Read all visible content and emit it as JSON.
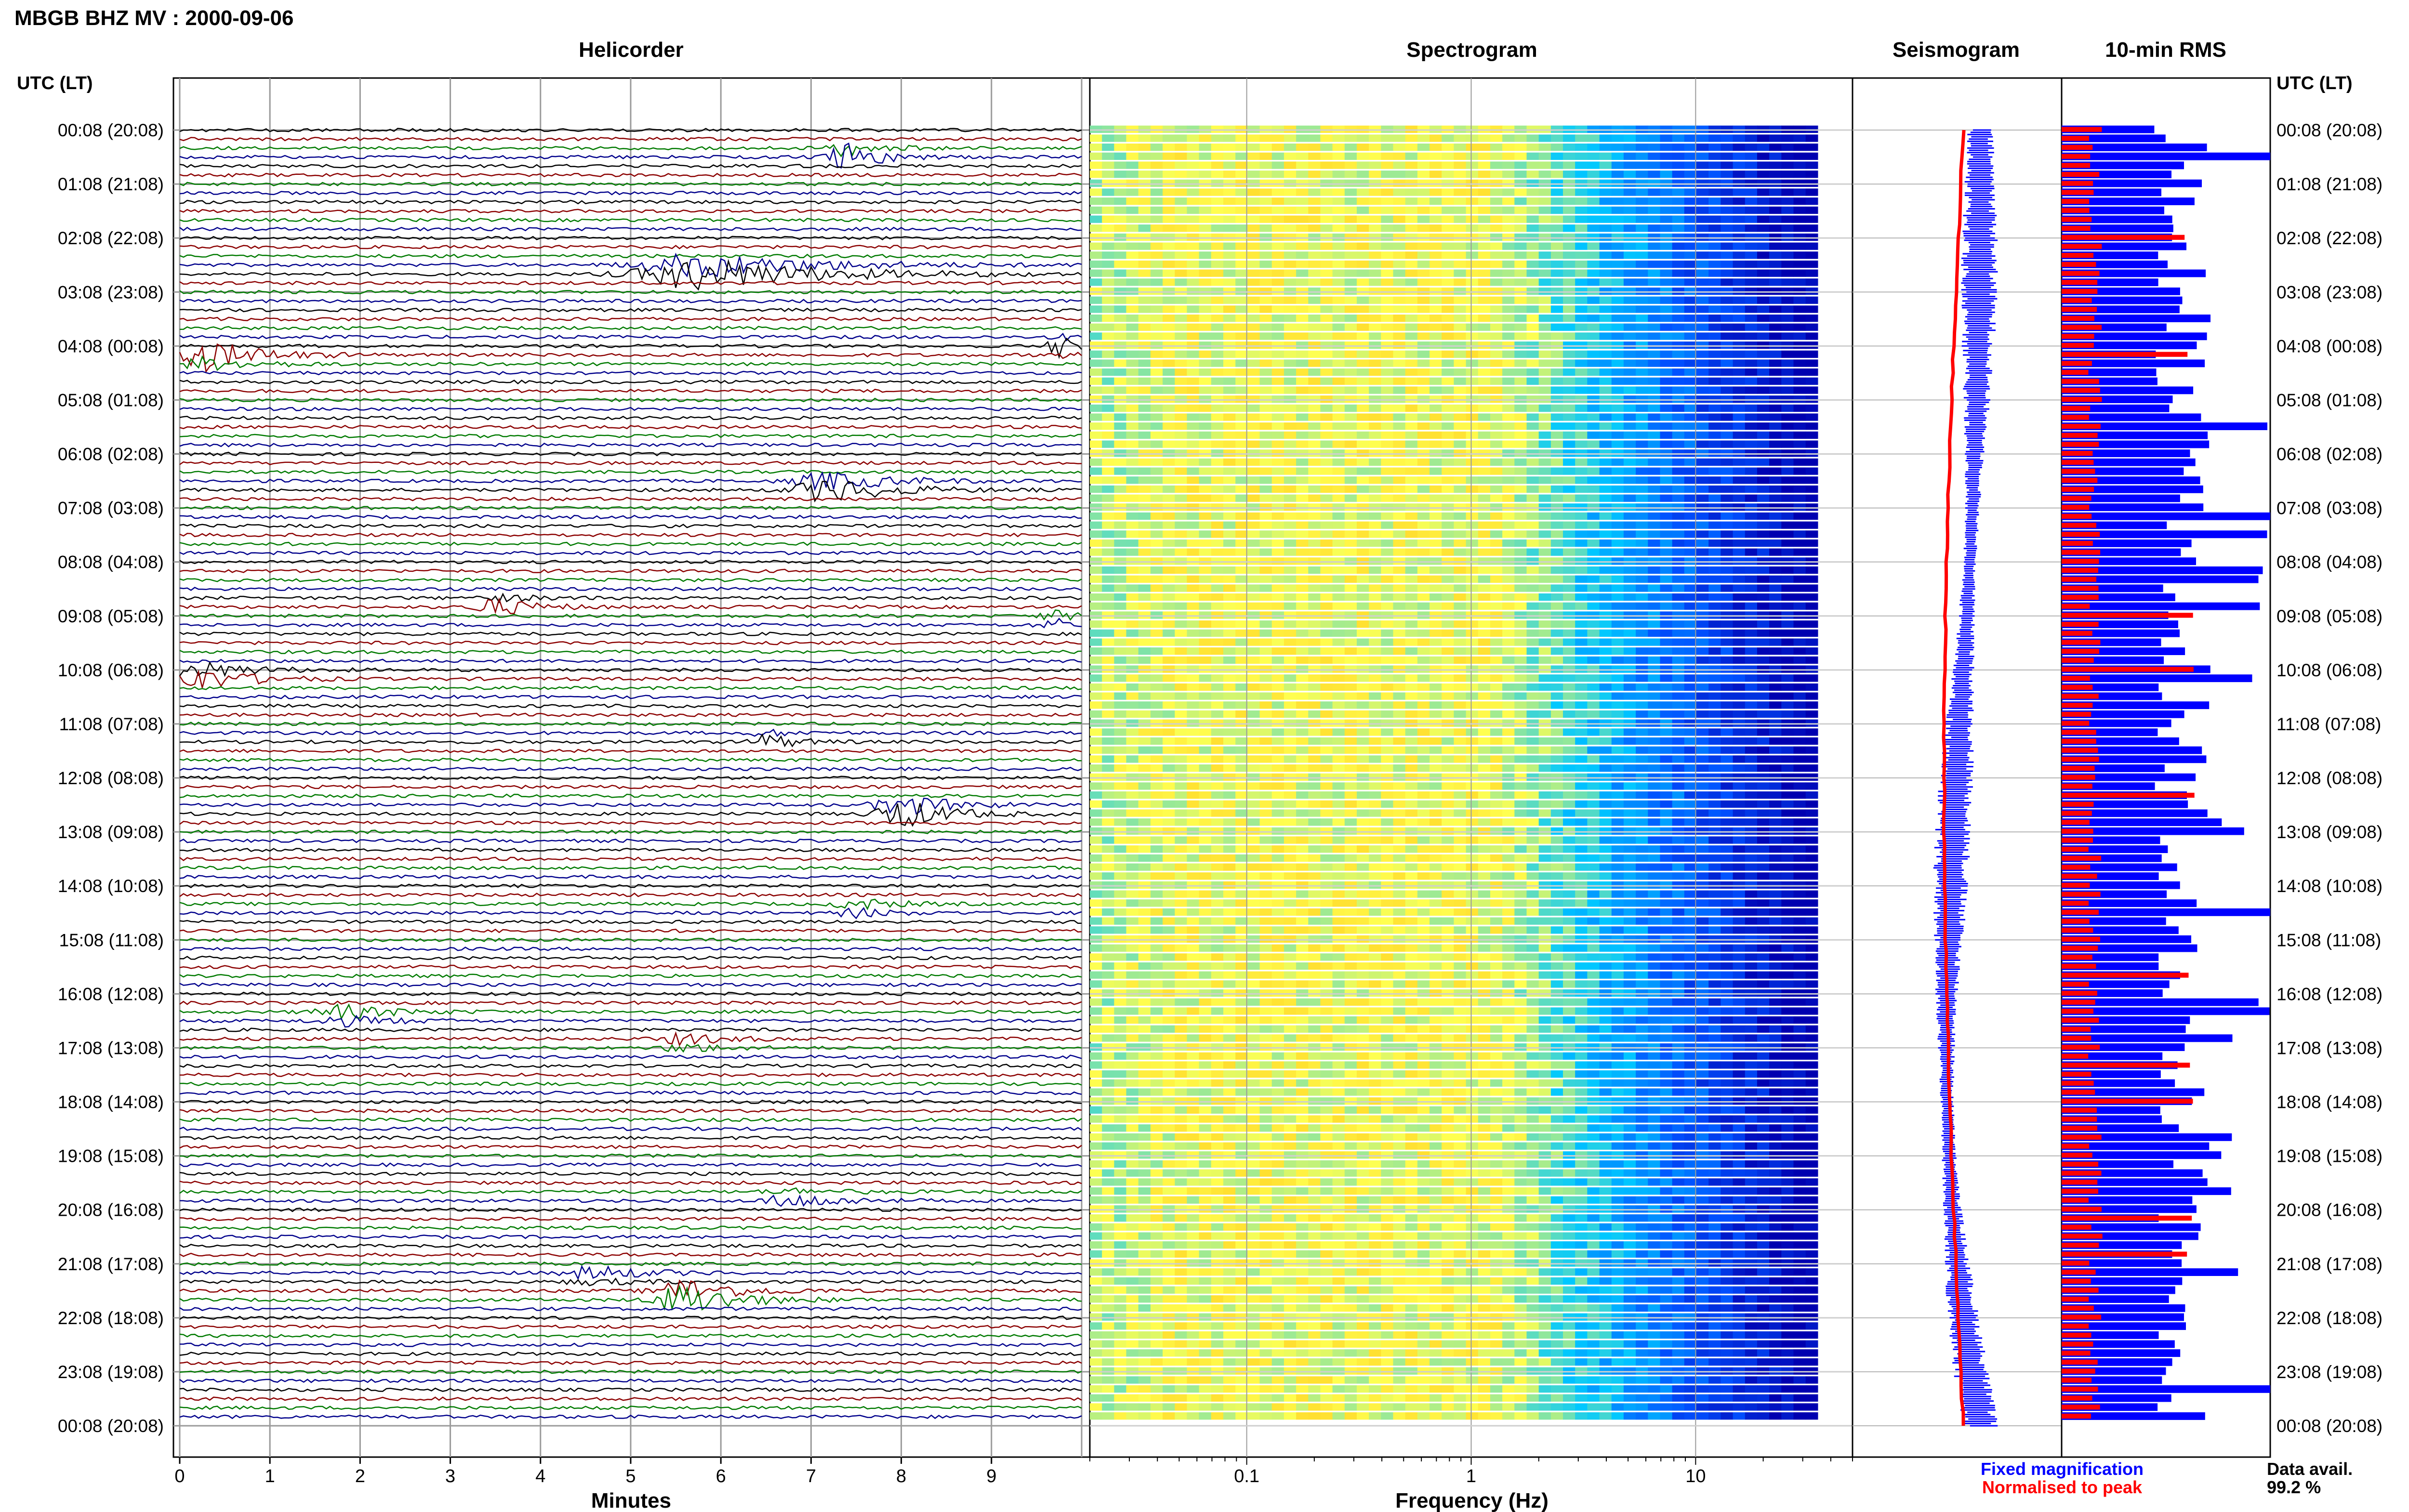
{
  "header": {
    "station_title": "MBGB BHZ MV : 2000-09-06",
    "time_axis_label": "UTC (LT)"
  },
  "panels": {
    "helicorder_title": "Helicorder",
    "spectrogram_title": "Spectrogram",
    "seismogram_title": "Seismogram",
    "rms_title": "10-min RMS"
  },
  "footer": {
    "helicorder_xlabel": "Minutes",
    "spectrogram_xlabel": "Frequency (Hz)",
    "legend_fixed": "Fixed magnification",
    "legend_normalised": "Normalised to peak",
    "data_avail_label": "Data avail.",
    "data_avail_value": "99.2 %"
  },
  "colors": {
    "trace_black": "#000000",
    "trace_red": "#8b0000",
    "trace_green": "#007a00",
    "trace_blue": "#00008b",
    "fixed_blue": "#0000ff",
    "normalised_red": "#ff0000"
  },
  "chart_data": [
    {
      "type": "line",
      "panel": "helicorder",
      "x_ticks": [
        "0",
        "1",
        "2",
        "3",
        "4",
        "5",
        "6",
        "7",
        "8",
        "9"
      ],
      "xlim": [
        0,
        10
      ],
      "row_times": [
        "00:08 (20:08)",
        "01:08 (21:08)",
        "02:08 (22:08)",
        "03:08 (23:08)",
        "04:08 (00:08)",
        "05:08 (01:08)",
        "06:08 (02:08)",
        "07:08 (03:08)",
        "08:08 (04:08)",
        "09:08 (05:08)",
        "10:08 (06:08)",
        "11:08 (07:08)",
        "12:08 (08:08)",
        "13:08 (09:08)",
        "14:08 (10:08)",
        "15:08 (11:08)",
        "16:08 (12:08)",
        "17:08 (13:08)",
        "18:08 (14:08)",
        "19:08 (15:08)",
        "20:08 (16:08)",
        "21:08 (17:08)",
        "22:08 (18:08)",
        "23:08 (19:08)",
        "00:08 (20:08)"
      ],
      "traces_per_hour": 6,
      "trace_colors": [
        "black",
        "red",
        "green",
        "blue"
      ],
      "events": [
        {
          "hour": 0.45,
          "minute": 7.4,
          "amp": 2.2,
          "width": 0.3
        },
        {
          "hour": 2.6,
          "minute": 5.8,
          "amp": 2.6,
          "width": 1.1
        },
        {
          "hour": 4.2,
          "minute": 0.3,
          "amp": 2.0,
          "width": 0.5
        },
        {
          "hour": 4.0,
          "minute": 9.8,
          "amp": 1.4,
          "width": 0.25
        },
        {
          "hour": 6.6,
          "minute": 7.2,
          "amp": 2.0,
          "width": 0.6
        },
        {
          "hour": 8.8,
          "minute": 3.5,
          "amp": 1.1,
          "width": 0.4
        },
        {
          "hour": 9.1,
          "minute": 9.7,
          "amp": 1.0,
          "width": 0.3
        },
        {
          "hour": 10.1,
          "minute": 0.2,
          "amp": 1.8,
          "width": 0.5
        },
        {
          "hour": 12.6,
          "minute": 8.0,
          "amp": 2.4,
          "width": 0.45
        },
        {
          "hour": 11.3,
          "minute": 6.5,
          "amp": 1.0,
          "width": 0.3
        },
        {
          "hour": 14.4,
          "minute": 7.5,
          "amp": 1.0,
          "width": 0.35
        },
        {
          "hour": 16.4,
          "minute": 1.8,
          "amp": 1.1,
          "width": 0.5
        },
        {
          "hour": 16.9,
          "minute": 5.6,
          "amp": 0.9,
          "width": 0.4
        },
        {
          "hour": 21.6,
          "minute": 5.6,
          "amp": 2.6,
          "width": 0.5
        },
        {
          "hour": 21.2,
          "minute": 4.6,
          "amp": 0.9,
          "width": 0.5
        },
        {
          "hour": 19.8,
          "minute": 6.8,
          "amp": 0.9,
          "width": 0.5
        }
      ]
    },
    {
      "type": "heatmap",
      "panel": "spectrogram",
      "x_scale": "log",
      "xlim": [
        0.02,
        50
      ],
      "x_ticks": [
        "0.1",
        "1",
        "10"
      ],
      "colormap": [
        "#0000b0",
        "#0050ff",
        "#00c8ff",
        "#ffff50",
        "#ffb000"
      ]
    },
    {
      "type": "line",
      "panel": "seismogram",
      "series": [
        {
          "name": "Fixed magnification",
          "color": "#0000ff"
        },
        {
          "name": "Normalised to peak",
          "color": "#ff0000"
        }
      ]
    },
    {
      "type": "bar",
      "panel": "10-min RMS",
      "orientation": "horizontal",
      "series": [
        {
          "color": "#0000ff",
          "kind": "fixed"
        },
        {
          "color": "#ff0000",
          "kind": "normalised"
        }
      ]
    }
  ]
}
